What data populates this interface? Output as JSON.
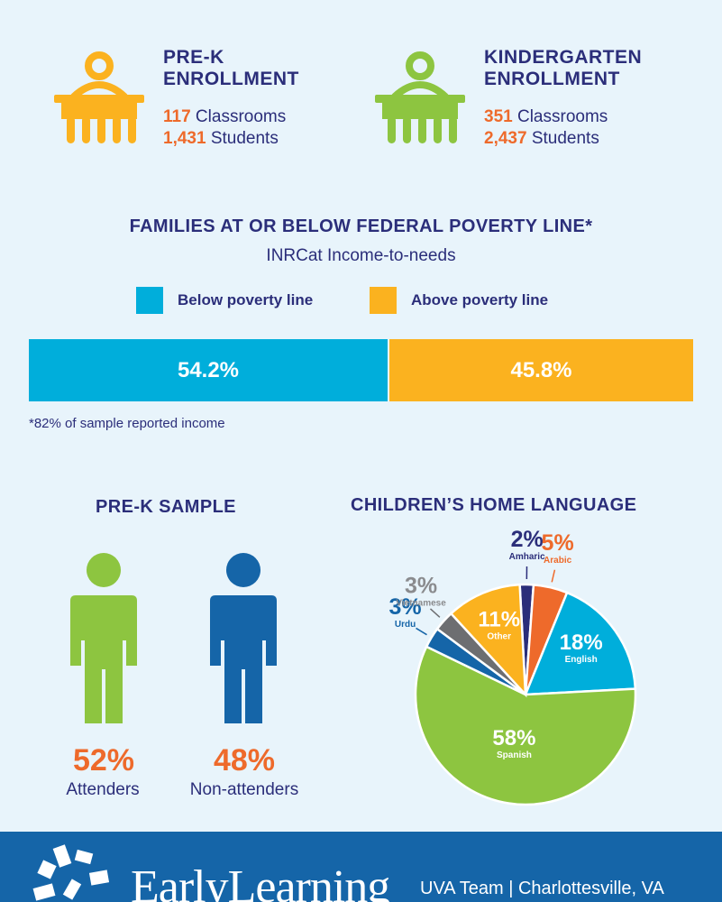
{
  "enrollment": {
    "prek": {
      "title": "PRE-K\nENROLLMENT",
      "classrooms_num": "117",
      "classrooms_label": " Classrooms",
      "students_num": "1,431",
      "students_label": " Students",
      "color": "#fbb21f"
    },
    "kindergarten": {
      "title": "KINDERGARTEN\nENROLLMENT",
      "classrooms_num": "351",
      "classrooms_label": " Classrooms",
      "students_num": "2,437",
      "students_label": " Students",
      "color": "#8dc540"
    }
  },
  "poverty": {
    "title": "FAMILIES AT OR BELOW FEDERAL POVERTY LINE*",
    "subtitle": "INRCat Income-to-needs",
    "legend_below": "Below poverty line",
    "legend_above": "Above poverty line",
    "below_label": "54.2%",
    "above_label": "45.8%",
    "footnote": "*82% of sample reported income"
  },
  "prek_sample": {
    "title": "PRE-K SAMPLE",
    "attenders_pct": "52%",
    "attenders_label": "Attenders",
    "nonattenders_pct": "48%",
    "nonattenders_label": "Non-attenders"
  },
  "language": {
    "title": "CHILDREN’S HOME LANGUAGE"
  },
  "chart_data": [
    {
      "type": "bar",
      "title": "FAMILIES AT OR BELOW FEDERAL POVERTY LINE*",
      "subtitle": "INRCat Income-to-needs",
      "orientation": "horizontal-stacked",
      "series": [
        {
          "name": "Below poverty line",
          "value": 54.2,
          "label": "54.2%",
          "color": "#00aedb"
        },
        {
          "name": "Above poverty line",
          "value": 45.8,
          "label": "45.8%",
          "color": "#fbb21f"
        }
      ]
    },
    {
      "type": "pie",
      "title": "CHILDREN’S HOME LANGUAGE",
      "slices": [
        {
          "name": "Amharic",
          "value": 2,
          "label": "2%",
          "color": "#2b2e7a",
          "label_color": "#2b2e7a",
          "outside": true
        },
        {
          "name": "Arabic",
          "value": 5,
          "label": "5%",
          "color": "#ee6a2b",
          "label_color": "#ee6a2b",
          "outside": true
        },
        {
          "name": "English",
          "value": 18,
          "label": "18%",
          "color": "#00aedb",
          "label_color": "#ffffff",
          "outside": false
        },
        {
          "name": "Spanish",
          "value": 58,
          "label": "58%",
          "color": "#8dc540",
          "label_color": "#ffffff",
          "outside": false
        },
        {
          "name": "Urdu",
          "value": 3,
          "label": "3%",
          "color": "#1565a8",
          "label_color": "#1565a8",
          "outside": true
        },
        {
          "name": "Vietnamese",
          "value": 3,
          "label": "3%",
          "color": "#6d6e71",
          "label_color": "#8a8b8e",
          "outside": true
        },
        {
          "name": "Other",
          "value": 11,
          "label": "11%",
          "color": "#fbb21f",
          "label_color": "#ffffff",
          "outside": false
        }
      ]
    }
  ],
  "footer": {
    "logo_text": "EarlyLearning",
    "team": "UVA Team | Charlottesville, VA",
    "background": "#1565a8"
  }
}
